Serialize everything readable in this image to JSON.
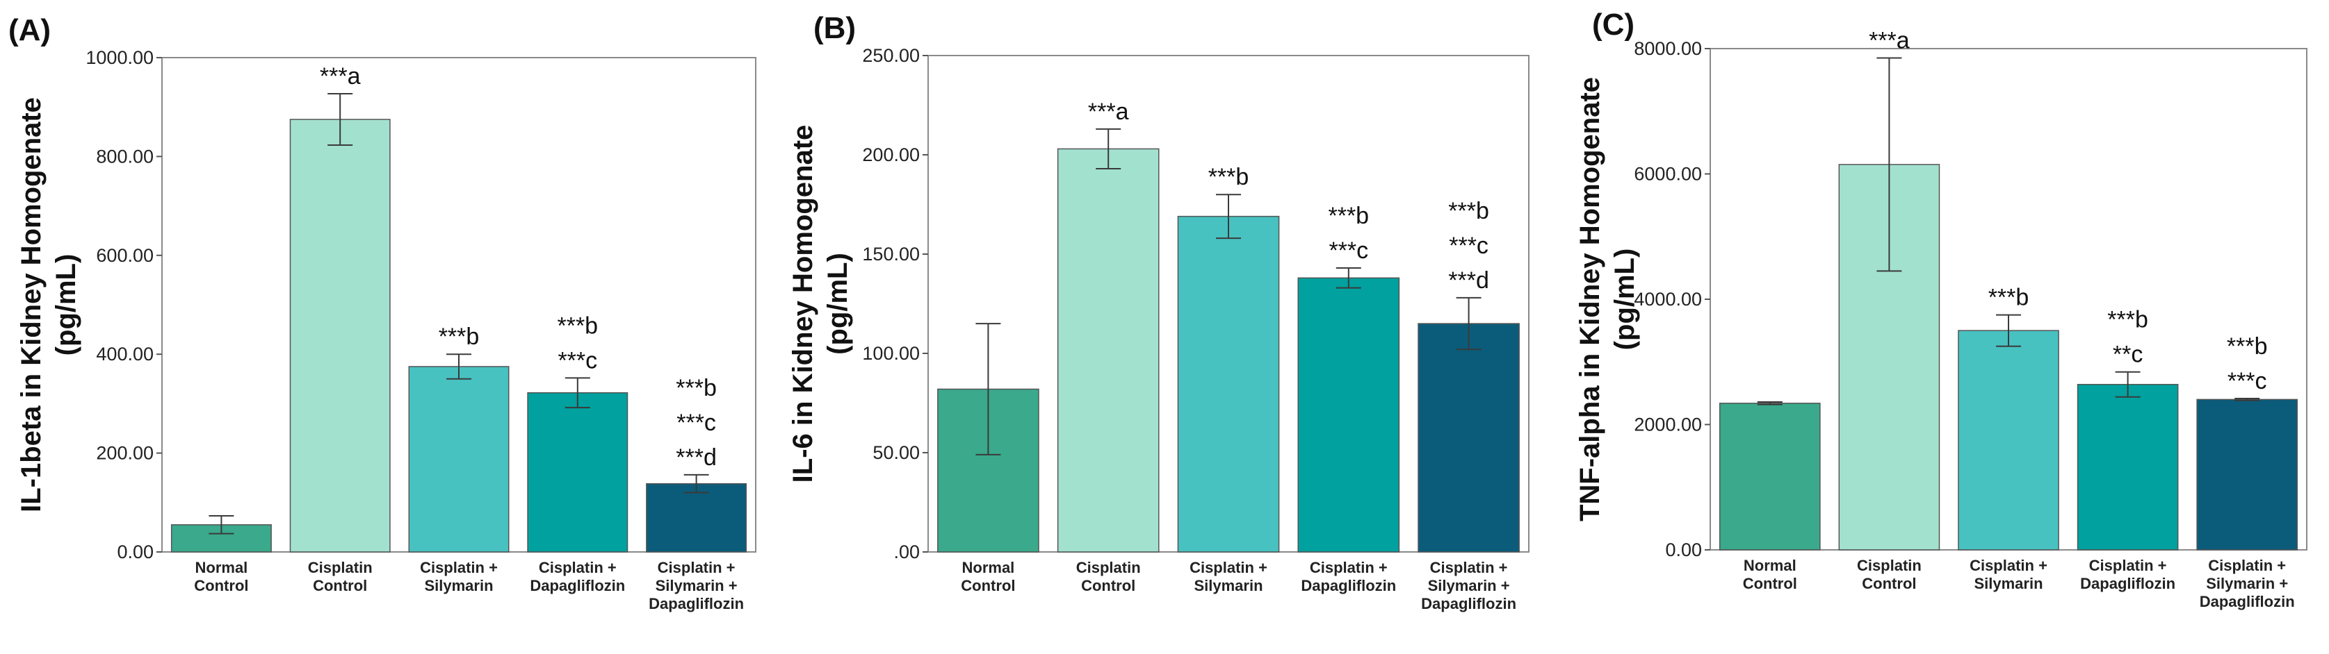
{
  "chart_data": [
    {
      "type": "bar",
      "panel_label": "(A)",
      "ylabel_lines": [
        "IL-1beta in Kidney Homogenate",
        "(pg/mL)"
      ],
      "ylim": [
        0,
        1000
      ],
      "yticks": [
        0,
        200,
        400,
        600,
        800,
        1000
      ],
      "ytick_labels": [
        "0.00",
        "200.00",
        "400.00",
        "600.00",
        "800.00",
        "1000.00"
      ],
      "categories": [
        [
          "Normal",
          "Control"
        ],
        [
          "Cisplatin",
          "Control"
        ],
        [
          "Cisplatin +",
          "Silymarin"
        ],
        [
          "Cisplatin +",
          "Dapagliflozin"
        ],
        [
          "Cisplatin +",
          "Silymarin +",
          "Dapagliflozin"
        ]
      ],
      "values": [
        55,
        875,
        375,
        322,
        138
      ],
      "errors": [
        18,
        52,
        25,
        30,
        18
      ],
      "colors": [
        "#3aa98c",
        "#a3e1cf",
        "#48c1c1",
        "#00a19e",
        "#0b5c7a"
      ],
      "significance": [
        [],
        [
          "***a"
        ],
        [
          "***b"
        ],
        [
          "***b",
          "***c"
        ],
        [
          "***b",
          "***c",
          "***d"
        ]
      ]
    },
    {
      "type": "bar",
      "panel_label": "(B)",
      "ylabel_lines": [
        "IL-6 in Kidney Homogenate",
        "(pg/mL)"
      ],
      "ylim": [
        0,
        250
      ],
      "yticks": [
        0,
        50,
        100,
        150,
        200,
        250
      ],
      "ytick_labels": [
        ".00",
        "50.00",
        "100.00",
        "150.00",
        "200.00",
        "250.00"
      ],
      "categories": [
        [
          "Normal",
          "Control"
        ],
        [
          "Cisplatin",
          "Control"
        ],
        [
          "Cisplatin +",
          "Silymarin"
        ],
        [
          "Cisplatin +",
          "Dapagliflozin"
        ],
        [
          "Cisplatin +",
          "Silymarin +",
          "Dapagliflozin"
        ]
      ],
      "values": [
        82,
        203,
        169,
        138,
        115
      ],
      "errors": [
        33,
        10,
        11,
        5,
        13
      ],
      "colors": [
        "#3aa98c",
        "#a3e1cf",
        "#48c1c1",
        "#00a19e",
        "#0b5c7a"
      ],
      "significance": [
        [],
        [
          "***a"
        ],
        [
          "***b"
        ],
        [
          "***b",
          "***c"
        ],
        [
          "***b",
          "***c",
          "***d"
        ]
      ]
    },
    {
      "type": "bar",
      "panel_label": "(C)",
      "ylabel_lines": [
        "TNF-alpha in Kidney Homogenate",
        "(pg/mL)"
      ],
      "ylim": [
        0,
        8000
      ],
      "yticks": [
        0,
        2000,
        4000,
        6000,
        8000
      ],
      "ytick_labels": [
        "0.00",
        "2000.00",
        "4000.00",
        "6000.00",
        "8000.00"
      ],
      "categories": [
        [
          "Normal",
          "Control"
        ],
        [
          "Cisplatin",
          "Control"
        ],
        [
          "Cisplatin +",
          "Silymarin"
        ],
        [
          "Cisplatin +",
          "Dapagliflozin"
        ],
        [
          "Cisplatin +",
          "Silymarin +",
          "Dapagliflozin"
        ]
      ],
      "values": [
        2340,
        6150,
        3500,
        2640,
        2400
      ],
      "errors": [
        20,
        1700,
        250,
        200,
        15
      ],
      "colors": [
        "#3aa98c",
        "#a3e1cf",
        "#48c1c1",
        "#00a19e",
        "#0b5c7a"
      ],
      "significance": [
        [],
        [
          "***a"
        ],
        [
          "***b"
        ],
        [
          "***b",
          "**c"
        ],
        [
          "***b",
          "***c"
        ]
      ]
    }
  ]
}
